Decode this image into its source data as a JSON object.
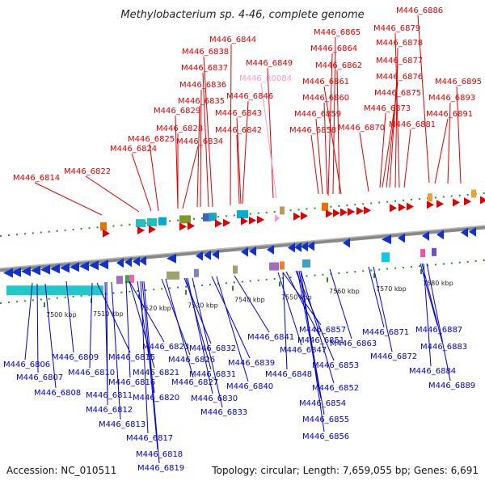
{
  "title": "Methylobacterium sp. 4-46, complete genome",
  "footer": {
    "accession": "Accession: NC_010511",
    "summary": "Topology: circular; Length: 7,659,055 bp; Genes: 6,691"
  },
  "kbp_ticks": [
    "7500 kbp",
    "7510 kbp",
    "7520 kbp",
    "7530 kbp",
    "7540 kbp",
    "7550 kbp",
    "7560 kbp",
    "7570 kbp",
    "7580 kbp"
  ],
  "top_labels": [
    "M446_6886",
    "M446_6865",
    "M446_6879",
    "M446_6844",
    "M446_6864",
    "M446_6878",
    "M446_6838",
    "M446_6849",
    "M446_6862",
    "M446_6877",
    "M446_6837",
    "M446_R0084",
    "M446_6861",
    "M446_6876",
    "M446_6895",
    "M446_6836",
    "M446_6846",
    "M446_6860",
    "M446_6875",
    "M446_6893",
    "M446_6835",
    "M446_6843",
    "M446_6859",
    "M446_6873",
    "M446_6829",
    "M446_6881",
    "M446_6891",
    "M446_6828",
    "M446_6842",
    "M446_6858",
    "M446_6870",
    "M446_6825",
    "M446_6834",
    "M446_6824",
    "M446_6822",
    "M446_6814"
  ],
  "bottom_labels": [
    "M446_6823",
    "M446_6841",
    "M446_6857",
    "M446_6851",
    "M446_6871",
    "M446_6887",
    "M446_6847",
    "M446_6863",
    "M446_6806",
    "M446_6809",
    "M446_6815",
    "M446_6826",
    "M446_6832",
    "M446_6839",
    "M446_6872",
    "M446_6883",
    "M446_6810",
    "M446_6821",
    "M446_6853",
    "M446_6807",
    "M446_6816",
    "M446_6827",
    "M446_6831",
    "M446_6848",
    "M446_6884",
    "M446_6840",
    "M446_6852",
    "M446_6889",
    "M446_6808",
    "M446_6811",
    "M446_6820",
    "M446_6830",
    "M446_6854",
    "M446_6812",
    "M446_6833",
    "M446_6855",
    "M446_6813",
    "M446_6817",
    "M446_6856",
    "M446_6818",
    "M446_6819"
  ]
}
